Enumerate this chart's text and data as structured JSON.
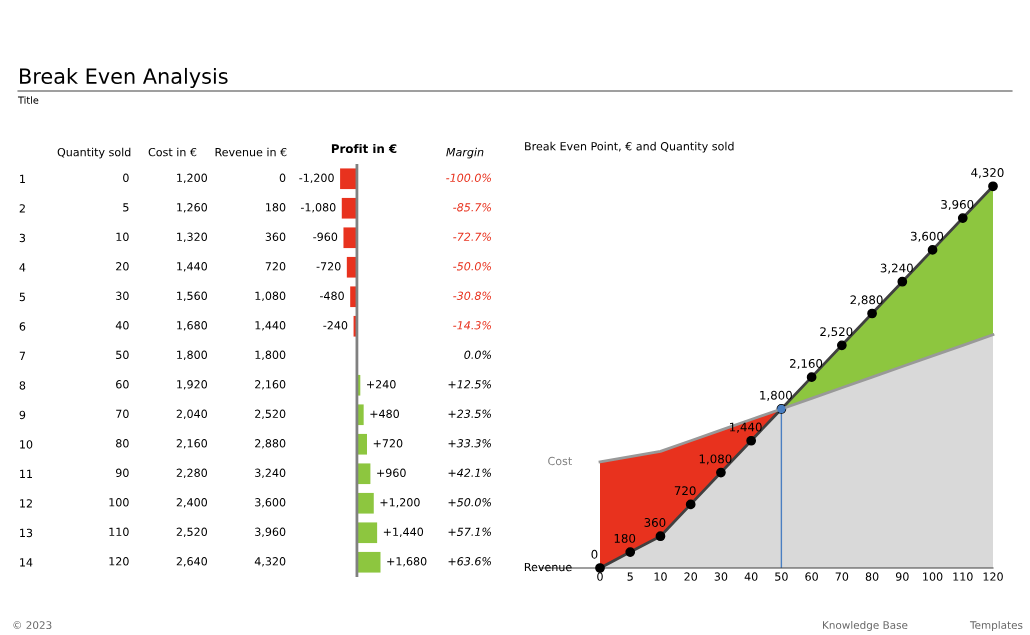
{
  "chart_data": [
    {
      "type": "other",
      "title": "Break Even Analysis",
      "subtitle": "Title",
      "annotations": [
        "© 2023",
        "Knowledge Base",
        "Templates"
      ]
    },
    {
      "type": "heatmap",
      "categories": [
        "Quantity sold",
        "Cost in €",
        "Revenue in €"
      ],
      "y_categories": [
        "1",
        "2",
        "3",
        "4",
        "5",
        "6",
        "7",
        "8",
        "9",
        "10",
        "11",
        "12",
        "13",
        "14"
      ],
      "cells": [
        [
          0,
          1200,
          0
        ],
        [
          5,
          1260,
          180
        ],
        [
          10,
          1320,
          360
        ],
        [
          20,
          1440,
          720
        ],
        [
          30,
          1560,
          1080
        ],
        [
          40,
          1680,
          1440
        ],
        [
          50,
          1800,
          1800
        ],
        [
          60,
          1920,
          2160
        ],
        [
          70,
          2040,
          2520
        ],
        [
          80,
          2160,
          2880
        ],
        [
          90,
          2280,
          3240
        ],
        [
          100,
          2400,
          3600
        ],
        [
          110,
          2520,
          3960
        ],
        [
          120,
          2640,
          4320
        ]
      ],
      "cell_labels": [
        [
          "0",
          "1,200",
          "0"
        ],
        [
          "5",
          "1,260",
          "180"
        ],
        [
          "10",
          "1,320",
          "360"
        ],
        [
          "20",
          "1,440",
          "720"
        ],
        [
          "30",
          "1,560",
          "1,080"
        ],
        [
          "40",
          "1,680",
          "1,440"
        ],
        [
          "50",
          "1,800",
          "1,800"
        ],
        [
          "60",
          "1,920",
          "2,160"
        ],
        [
          "70",
          "2,040",
          "2,520"
        ],
        [
          "80",
          "2,160",
          "2,880"
        ],
        [
          "90",
          "2,280",
          "3,240"
        ],
        [
          "100",
          "2,400",
          "3,600"
        ],
        [
          "110",
          "2,520",
          "3,960"
        ],
        [
          "120",
          "2,640",
          "4,320"
        ]
      ]
    },
    {
      "type": "bar",
      "orientation": "horizontal",
      "title": "Profit in €",
      "categories": [
        null,
        null,
        null,
        null,
        null,
        null,
        null,
        null,
        null,
        null,
        null,
        null,
        null,
        null
      ],
      "values": [
        -1200,
        -1080,
        -960,
        -720,
        -480,
        -240,
        0,
        240,
        480,
        720,
        960,
        1200,
        1440,
        1680
      ],
      "colors": [
        "#e8321e",
        "#e8321e",
        "#e8321e",
        "#e8321e",
        "#e8321e",
        "#e8321e",
        "#e8321e",
        "#8dc63f",
        "#8dc63f",
        "#8dc63f",
        "#8dc63f",
        "#8dc63f",
        "#8dc63f",
        "#8dc63f"
      ],
      "value_labels": [
        "-1,200",
        "-1,080",
        "-960",
        "-720",
        "-480",
        "-240",
        null,
        "+240",
        "+480",
        "+720",
        "+960",
        "+1,200",
        "+1,440",
        "+1,680"
      ],
      "ref_lines": [
        {
          "axis": "x",
          "value": 0,
          "color": "#808080"
        }
      ]
    },
    {
      "type": "heatmap",
      "categories": [
        "Margin"
      ],
      "y_categories": [
        null,
        null,
        null,
        null,
        null,
        null,
        null,
        null,
        null,
        null,
        null,
        null,
        null,
        null
      ],
      "cells": [
        [
          -100.0
        ],
        [
          -85.7
        ],
        [
          -72.7
        ],
        [
          -50.0
        ],
        [
          -30.8
        ],
        [
          -14.3
        ],
        [
          0.0
        ],
        [
          12.5
        ],
        [
          23.5
        ],
        [
          33.3
        ],
        [
          42.1
        ],
        [
          50.0
        ],
        [
          57.1
        ],
        [
          63.6
        ]
      ],
      "cell_labels": [
        [
          "-100.0%"
        ],
        [
          "-85.7%"
        ],
        [
          "-72.7%"
        ],
        [
          "-50.0%"
        ],
        [
          "-30.8%"
        ],
        [
          "-14.3%"
        ],
        [
          "0.0%"
        ],
        [
          "+12.5%"
        ],
        [
          "+23.5%"
        ],
        [
          "+33.3%"
        ],
        [
          "+42.1%"
        ],
        [
          "+50.0%"
        ],
        [
          "+57.1%"
        ],
        [
          "+63.6%"
        ]
      ]
    },
    {
      "type": "area",
      "title": "Break Even Point, € and Quantity sold",
      "tick_labels": "x",
      "categories": [
        "0",
        "5",
        "10",
        "20",
        "30",
        "40",
        "50",
        "60",
        "70",
        "80",
        "90",
        "100",
        "110",
        "120"
      ],
      "series": [
        {
          "type": "line",
          "name": "Revenue",
          "color": "#404040",
          "marker": "circle",
          "values": [
            0,
            180,
            360,
            720,
            1080,
            1440,
            1800,
            2160,
            2520,
            2880,
            3240,
            3600,
            3960,
            4320
          ],
          "value_labels": [
            "0",
            "180",
            "360",
            "720",
            "1,080",
            "1,440",
            "1,800",
            "2,160",
            "2,520",
            "2,880",
            "3,240",
            "3,600",
            "3,960",
            "4,320"
          ]
        },
        {
          "type": "line",
          "name": "Cost",
          "color": "#999999",
          "marker": "none",
          "values": [
            1200,
            1260,
            1320,
            1440,
            1560,
            1680,
            1800,
            1920,
            2040,
            2160,
            2280,
            2400,
            2520,
            2640
          ]
        },
        {
          "color": "#e8321e",
          "values": [
            1200,
            1260,
            1320,
            1440,
            1560,
            1680,
            1800,
            null,
            null,
            null,
            null,
            null,
            null,
            null
          ]
        },
        {
          "color": "#8dc63f",
          "values": [
            null,
            null,
            null,
            null,
            null,
            null,
            1800,
            2160,
            2520,
            2880,
            3240,
            3600,
            3960,
            4320
          ]
        },
        {
          "color": "#d9d9d9",
          "values": [
            0,
            180,
            360,
            720,
            1080,
            1440,
            1800,
            1920,
            2040,
            2160,
            2280,
            2400,
            2520,
            2640
          ]
        }
      ],
      "ref_lines": [
        {
          "axis": "x",
          "value": "50",
          "color": "#4a7fc1"
        }
      ]
    }
  ]
}
